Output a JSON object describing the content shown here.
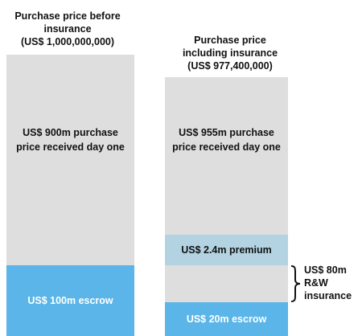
{
  "chart_data": {
    "type": "bar",
    "columns": [
      {
        "header_lines": [
          "Purchase price before",
          "insurance",
          "(US$ 1,000,000,000)"
        ],
        "segments": [
          {
            "id": "escrow",
            "label_lines": [
              "US$ 100m escrow"
            ],
            "value": 100,
            "color": "#5bb5e8",
            "text_color": "#ffffff"
          },
          {
            "id": "day-one",
            "label_lines": [
              "US$ 900m purchase",
              "price received day one"
            ],
            "value": 900,
            "color": "#dedede",
            "text_color": "#111111"
          }
        ]
      },
      {
        "header_lines": [
          "Purchase price",
          "including insurance",
          "(US$ 977,400,000)"
        ],
        "segments": [
          {
            "id": "escrow",
            "label_lines": [
              "US$ 20m escrow"
            ],
            "value": 20,
            "color": "#5bb5e8",
            "text_color": "#ffffff"
          },
          {
            "id": "rw-gap",
            "label_lines": [],
            "value": 80,
            "color": "#dedede",
            "text_color": "#111111"
          },
          {
            "id": "premium",
            "label_lines": [
              "US$ 2.4m premium"
            ],
            "value": 2.4,
            "color": "#b3d3e3",
            "text_color": "#111111"
          },
          {
            "id": "day-one",
            "label_lines": [
              "US$ 955m purchase",
              "price received day one"
            ],
            "value": 955,
            "color": "#dedede",
            "text_color": "#111111"
          }
        ]
      }
    ],
    "brace_annotation": [
      "US$ 80m",
      "R&W",
      "insurance"
    ]
  }
}
